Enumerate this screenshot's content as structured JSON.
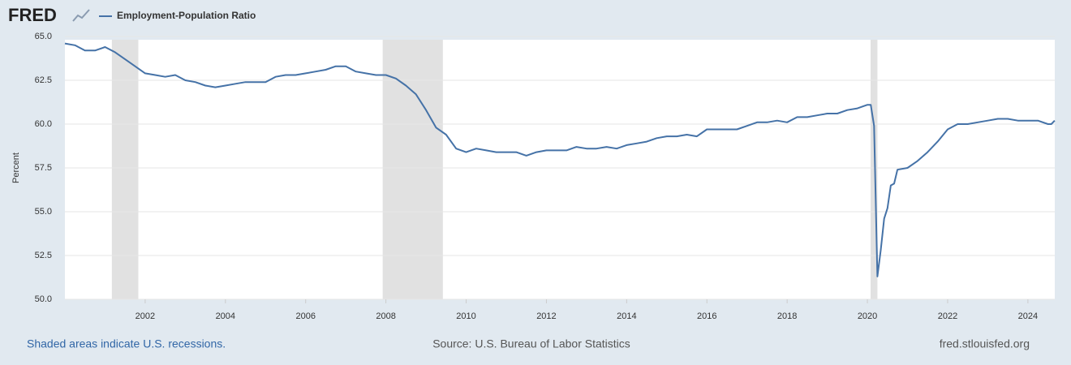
{
  "header": {
    "logo": "FRED"
  },
  "chart_data": {
    "type": "line",
    "ylabel": "Percent",
    "series": [
      {
        "name": "Employment-Population Ratio",
        "color": "#4572a7",
        "x": [
          2000,
          2000.25,
          2000.5,
          2000.75,
          2001,
          2001.25,
          2001.5,
          2001.75,
          2002,
          2002.25,
          2002.5,
          2002.75,
          2003,
          2003.25,
          2003.5,
          2003.75,
          2004,
          2004.25,
          2004.5,
          2004.75,
          2005,
          2005.25,
          2005.5,
          2005.75,
          2006,
          2006.25,
          2006.5,
          2006.75,
          2007,
          2007.25,
          2007.5,
          2007.75,
          2008,
          2008.25,
          2008.5,
          2008.75,
          2009,
          2009.25,
          2009.5,
          2009.75,
          2010,
          2010.25,
          2010.5,
          2010.75,
          2011,
          2011.25,
          2011.5,
          2011.75,
          2012,
          2012.25,
          2012.5,
          2012.75,
          2013,
          2013.25,
          2013.5,
          2013.75,
          2014,
          2014.25,
          2014.5,
          2014.75,
          2015,
          2015.25,
          2015.5,
          2015.75,
          2016,
          2016.25,
          2016.5,
          2016.75,
          2017,
          2017.25,
          2017.5,
          2017.75,
          2018,
          2018.25,
          2018.5,
          2018.75,
          2019,
          2019.25,
          2019.5,
          2019.75,
          2020,
          2020.083,
          2020.167,
          2020.25,
          2020.333,
          2020.417,
          2020.5,
          2020.583,
          2020.667,
          2020.75,
          2021,
          2021.25,
          2021.5,
          2021.75,
          2022,
          2022.25,
          2022.5,
          2022.75,
          2023,
          2023.25,
          2023.5,
          2023.75,
          2024,
          2024.25,
          2024.5,
          2024.583,
          2024.667
        ],
        "values": [
          64.6,
          64.5,
          64.2,
          64.2,
          64.4,
          64.1,
          63.7,
          63.3,
          62.9,
          62.8,
          62.7,
          62.8,
          62.5,
          62.4,
          62.2,
          62.1,
          62.2,
          62.3,
          62.4,
          62.4,
          62.4,
          62.7,
          62.8,
          62.8,
          62.9,
          63.0,
          63.1,
          63.3,
          63.3,
          63.0,
          62.9,
          62.8,
          62.8,
          62.6,
          62.2,
          61.7,
          60.8,
          59.8,
          59.4,
          58.6,
          58.4,
          58.6,
          58.5,
          58.4,
          58.4,
          58.4,
          58.2,
          58.4,
          58.5,
          58.5,
          58.5,
          58.7,
          58.6,
          58.6,
          58.7,
          58.6,
          58.8,
          58.9,
          59.0,
          59.2,
          59.3,
          59.3,
          59.4,
          59.3,
          59.7,
          59.7,
          59.7,
          59.7,
          59.9,
          60.1,
          60.1,
          60.2,
          60.1,
          60.4,
          60.4,
          60.5,
          60.6,
          60.6,
          60.8,
          60.9,
          61.1,
          61.1,
          59.9,
          51.3,
          52.8,
          54.6,
          55.2,
          56.5,
          56.6,
          57.4,
          57.5,
          57.9,
          58.4,
          59.0,
          59.7,
          60.0,
          60.0,
          60.1,
          60.2,
          60.3,
          60.3,
          60.2,
          60.2,
          60.2,
          60.0,
          60.0,
          60.2
        ]
      }
    ],
    "recessions": [
      [
        2001.17,
        2001.83
      ],
      [
        2007.92,
        2009.42
      ],
      [
        2020.08,
        2020.25
      ]
    ],
    "xlim": [
      2000,
      2024.67
    ],
    "xticks": [
      2002,
      2004,
      2006,
      2008,
      2010,
      2012,
      2014,
      2016,
      2018,
      2020,
      2022,
      2024
    ],
    "ylim": [
      50,
      65
    ],
    "yticks": [
      {
        "value": 50,
        "label": "50.0"
      },
      {
        "value": 52.5,
        "label": "52.5"
      },
      {
        "value": 55,
        "label": "55.0"
      },
      {
        "value": 57.5,
        "label": "57.5"
      },
      {
        "value": 60,
        "label": "60.0"
      },
      {
        "value": 62.5,
        "label": "62.5"
      },
      {
        "value": 65,
        "label": "65.0"
      }
    ],
    "grid": true,
    "recession_color": "#e1e1e1"
  },
  "footer": {
    "note": "Shaded areas indicate U.S. recessions.",
    "source": "Source: U.S. Bureau of Labor Statistics",
    "site": "fred.stlouisfed.org"
  }
}
